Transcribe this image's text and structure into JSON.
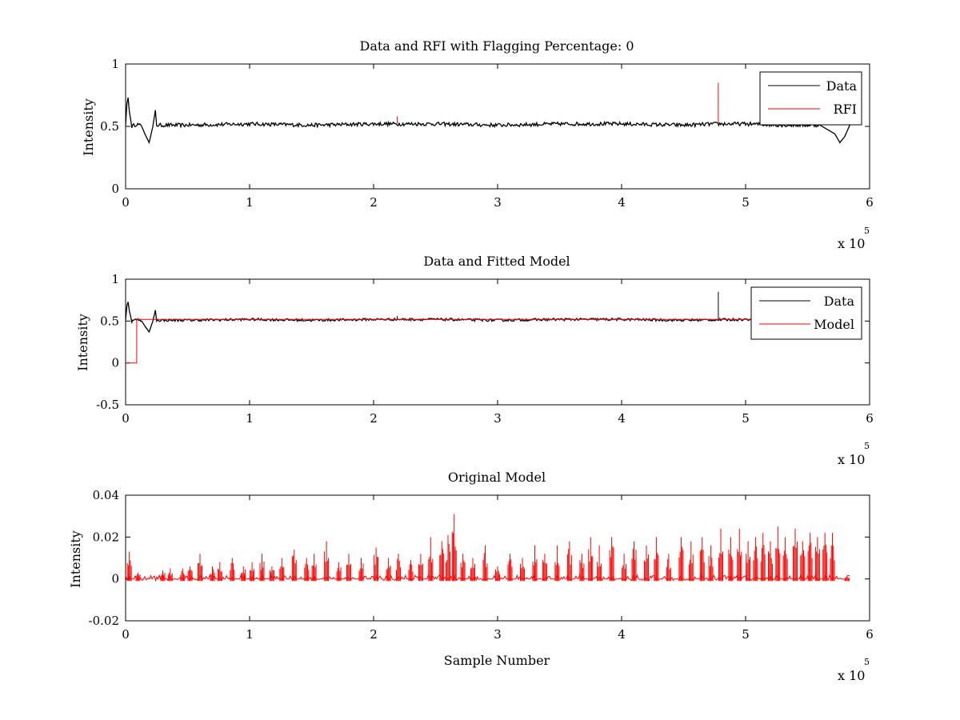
{
  "chart_data": [
    {
      "type": "line",
      "title": "Data and RFI with Flagging Percentage: 0",
      "xlabel": "",
      "ylabel": "Intensity",
      "xlim": [
        0,
        6
      ],
      "ylim": [
        0,
        1
      ],
      "xticks": [
        "0",
        "1",
        "2",
        "3",
        "4",
        "5",
        "6"
      ],
      "yticks": [
        "0",
        "0.5",
        "1"
      ],
      "x_multiplier": {
        "base": "x 10",
        "exponent": "5"
      },
      "legend": {
        "position": "top-right",
        "entries": [
          "Data",
          "RFI"
        ]
      },
      "series": [
        {
          "name": "Data",
          "color": "#000000",
          "points": [
            [
              0,
              0.51
            ],
            [
              0.01,
              0.68
            ],
            [
              0.02,
              0.73
            ],
            [
              0.03,
              0.62
            ],
            [
              0.05,
              0.5
            ],
            [
              0.09,
              0.52
            ],
            [
              0.13,
              0.5
            ],
            [
              0.16,
              0.43
            ],
            [
              0.19,
              0.37
            ],
            [
              0.22,
              0.5
            ],
            [
              0.24,
              0.63
            ],
            [
              0.25,
              0.51
            ],
            [
              0.5,
              0.51
            ],
            [
              1,
              0.52
            ],
            [
              1.5,
              0.51
            ],
            [
              2,
              0.52
            ],
            [
              2.19,
              0.52
            ],
            [
              2.5,
              0.52
            ],
            [
              3,
              0.51
            ],
            [
              3.5,
              0.52
            ],
            [
              4,
              0.52
            ],
            [
              4.5,
              0.51
            ],
            [
              4.76,
              0.52
            ],
            [
              5,
              0.52
            ],
            [
              5.3,
              0.51
            ],
            [
              5.6,
              0.51
            ],
            [
              5.72,
              0.44
            ],
            [
              5.76,
              0.37
            ],
            [
              5.8,
              0.42
            ],
            [
              5.84,
              0.51
            ]
          ]
        },
        {
          "name": "RFI",
          "color": "#ff0000",
          "spikes": [
            [
              2.19,
              0.58
            ],
            [
              4.78,
              0.85
            ]
          ]
        }
      ]
    },
    {
      "type": "line",
      "title": "Data and Fitted Model",
      "xlabel": "",
      "ylabel": "Intensity",
      "xlim": [
        0,
        6
      ],
      "ylim": [
        -0.5,
        1
      ],
      "xticks": [
        "0",
        "1",
        "2",
        "3",
        "4",
        "5",
        "6"
      ],
      "yticks": [
        "-0.5",
        "0",
        "0.5",
        "1"
      ],
      "x_multiplier": {
        "base": "x 10",
        "exponent": "5"
      },
      "legend": {
        "position": "top-right",
        "entries": [
          "Data",
          "Model"
        ]
      },
      "series": [
        {
          "name": "Data",
          "color": "#000000",
          "points": [
            [
              0,
              0.51
            ],
            [
              0.01,
              0.68
            ],
            [
              0.02,
              0.73
            ],
            [
              0.03,
              0.62
            ],
            [
              0.05,
              0.5
            ],
            [
              0.09,
              0.52
            ],
            [
              0.13,
              0.5
            ],
            [
              0.16,
              0.43
            ],
            [
              0.19,
              0.37
            ],
            [
              0.22,
              0.5
            ],
            [
              0.24,
              0.63
            ],
            [
              0.25,
              0.51
            ],
            [
              0.5,
              0.51
            ],
            [
              1,
              0.52
            ],
            [
              1.5,
              0.51
            ],
            [
              2,
              0.52
            ],
            [
              2.5,
              0.52
            ],
            [
              3,
              0.51
            ],
            [
              3.5,
              0.52
            ],
            [
              4,
              0.52
            ],
            [
              4.5,
              0.51
            ],
            [
              5,
              0.52
            ],
            [
              5.3,
              0.51
            ],
            [
              5.6,
              0.51
            ],
            [
              5.72,
              0.44
            ],
            [
              5.76,
              0.37
            ],
            [
              5.8,
              0.42
            ],
            [
              5.84,
              0.51
            ]
          ],
          "spikes": [
            [
              4.78,
              0.85
            ],
            [
              2.19,
              0.56
            ]
          ]
        },
        {
          "name": "Model",
          "color": "#ff0000",
          "points": [
            [
              0,
              0
            ],
            [
              0.09,
              0
            ],
            [
              0.09,
              0.52
            ],
            [
              0.5,
              0.52
            ],
            [
              1,
              0.52
            ],
            [
              1.5,
              0.52
            ],
            [
              2,
              0.52
            ],
            [
              2.5,
              0.52
            ],
            [
              3,
              0.52
            ],
            [
              3.5,
              0.52
            ],
            [
              4,
              0.52
            ],
            [
              4.5,
              0.52
            ],
            [
              5,
              0.52
            ],
            [
              5.5,
              0.52
            ],
            [
              5.84,
              0.52
            ]
          ]
        }
      ]
    },
    {
      "type": "line",
      "title": "Original Model",
      "xlabel": "Sample Number",
      "ylabel": "Intensity",
      "xlim": [
        0,
        6
      ],
      "ylim": [
        -0.02,
        0.04
      ],
      "xticks": [
        "0",
        "1",
        "2",
        "3",
        "4",
        "5",
        "6"
      ],
      "yticks": [
        "-0.02",
        "0",
        "0.02",
        "0.04"
      ],
      "x_multiplier": {
        "base": "x 10",
        "exponent": "5"
      },
      "series": [
        {
          "color": "#ff0000",
          "baseline": 0,
          "x_end": 5.84,
          "spikes": [
            [
              0.03,
              0.013
            ],
            [
              0.1,
              0.003
            ],
            [
              0.3,
              0.004
            ],
            [
              0.36,
              0.005
            ],
            [
              0.46,
              0.005
            ],
            [
              0.52,
              0.006
            ],
            [
              0.6,
              0.012
            ],
            [
              0.7,
              0.006
            ],
            [
              0.76,
              0.008
            ],
            [
              0.86,
              0.01
            ],
            [
              0.95,
              0.006
            ],
            [
              1.02,
              0.008
            ],
            [
              1.1,
              0.012
            ],
            [
              1.18,
              0.006
            ],
            [
              1.26,
              0.01
            ],
            [
              1.36,
              0.014
            ],
            [
              1.46,
              0.01
            ],
            [
              1.52,
              0.012
            ],
            [
              1.62,
              0.018
            ],
            [
              1.72,
              0.008
            ],
            [
              1.8,
              0.012
            ],
            [
              1.9,
              0.01
            ],
            [
              2.02,
              0.015
            ],
            [
              2.12,
              0.01
            ],
            [
              2.2,
              0.012
            ],
            [
              2.3,
              0.009
            ],
            [
              2.38,
              0.012
            ],
            [
              2.46,
              0.02
            ],
            [
              2.55,
              0.018
            ],
            [
              2.6,
              0.021
            ],
            [
              2.65,
              0.031
            ],
            [
              2.72,
              0.012
            ],
            [
              2.8,
              0.01
            ],
            [
              2.9,
              0.016
            ],
            [
              3,
              0.006
            ],
            [
              3.1,
              0.012
            ],
            [
              3.2,
              0.01
            ],
            [
              3.3,
              0.016
            ],
            [
              3.38,
              0.012
            ],
            [
              3.48,
              0.016
            ],
            [
              3.58,
              0.018
            ],
            [
              3.68,
              0.012
            ],
            [
              3.75,
              0.02
            ],
            [
              3.82,
              0.016
            ],
            [
              3.92,
              0.02
            ],
            [
              4.02,
              0.012
            ],
            [
              4.1,
              0.018
            ],
            [
              4.2,
              0.016
            ],
            [
              4.28,
              0.02
            ],
            [
              4.38,
              0.012
            ],
            [
              4.48,
              0.02
            ],
            [
              4.56,
              0.018
            ],
            [
              4.65,
              0.02
            ],
            [
              4.72,
              0.016
            ],
            [
              4.8,
              0.024
            ],
            [
              4.88,
              0.02
            ],
            [
              4.95,
              0.024
            ],
            [
              5.02,
              0.018
            ],
            [
              5.08,
              0.02
            ],
            [
              5.14,
              0.022
            ],
            [
              5.2,
              0.018
            ],
            [
              5.26,
              0.025
            ],
            [
              5.32,
              0.02
            ],
            [
              5.4,
              0.024
            ],
            [
              5.46,
              0.018
            ],
            [
              5.52,
              0.022
            ],
            [
              5.58,
              0.02
            ],
            [
              5.64,
              0.022
            ],
            [
              5.7,
              0.022
            ],
            [
              5.82,
              0.001
            ]
          ]
        }
      ]
    }
  ]
}
